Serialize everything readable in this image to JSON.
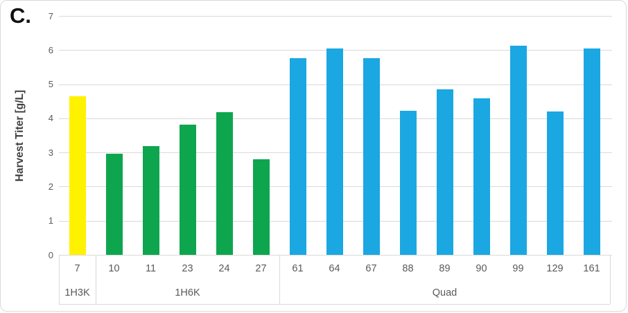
{
  "panel_label": "C.",
  "colors": {
    "bar_1H3K": "#FFF200",
    "bar_1H6K": "#0DA64F",
    "bar_Quad": "#1BA7E2",
    "gridline": "#D9D9D9",
    "tick_text": "#595959",
    "axis_title_text": "#3F3F3F"
  },
  "chart_data": {
    "type": "bar",
    "title": "",
    "xlabel": "",
    "ylabel": "Harvest Titer [g/L]",
    "ylim": [
      0,
      7
    ],
    "yticks": [
      0,
      1,
      2,
      3,
      4,
      5,
      6,
      7
    ],
    "grid": true,
    "legend": "none",
    "groups": [
      {
        "name": "1H3K",
        "color": "#FFF200",
        "categories": [
          "7"
        ],
        "values": [
          4.65
        ]
      },
      {
        "name": "1H6K",
        "color": "#0DA64F",
        "categories": [
          "10",
          "11",
          "23",
          "24",
          "27"
        ],
        "values": [
          2.97,
          3.18,
          3.82,
          4.18,
          2.81
        ]
      },
      {
        "name": "Quad",
        "color": "#1BA7E2",
        "categories": [
          "61",
          "64",
          "67",
          "88",
          "89",
          "90",
          "99",
          "129",
          "161"
        ],
        "values": [
          5.77,
          6.05,
          5.77,
          4.22,
          4.85,
          4.59,
          6.12,
          4.19,
          6.05
        ]
      }
    ]
  }
}
